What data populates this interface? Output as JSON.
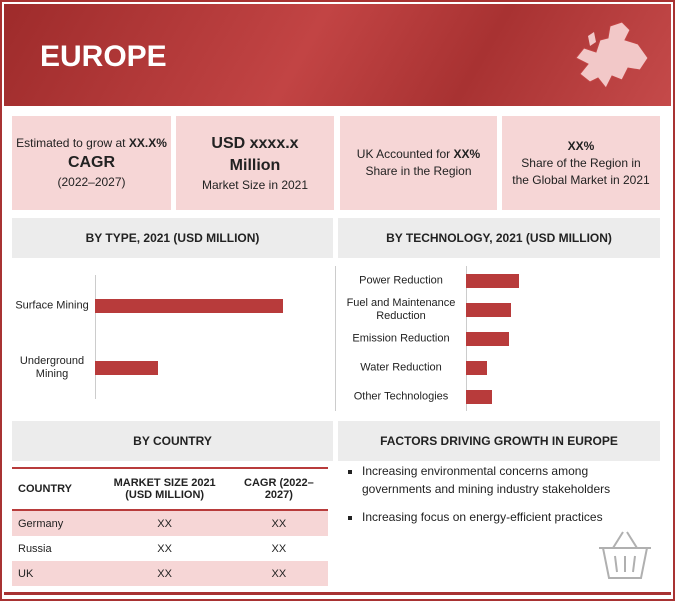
{
  "header": {
    "title": "EUROPE"
  },
  "stats": [
    {
      "pre": "Estimated to grow at",
      "highlight": "XX.X%",
      "main": "CAGR",
      "note": "(2022–2027)"
    },
    {
      "main": "USD xxxx.x",
      "main2": "Million",
      "note": "Market Size in 2021"
    },
    {
      "pre": "UK Accounted for",
      "highlight": "XX%",
      "note": "Share in the Region"
    },
    {
      "highlight": "XX%",
      "note": "Share of the Region in",
      "note2": "the Global Market in 2021"
    }
  ],
  "chart_data": [
    {
      "type": "bar",
      "title": "BY TYPE, 2021 (USD MILLION)",
      "orientation": "horizontal",
      "categories": [
        "Surface Mining",
        "Underground Mining"
      ],
      "values": [
        80,
        27
      ],
      "xlim": [
        0,
        100
      ],
      "color": "#b83b3b"
    },
    {
      "type": "bar",
      "title": "BY TECHNOLOGY, 2021 (USD MILLION)",
      "orientation": "horizontal",
      "categories": [
        "Power Reduction",
        "Fuel and Maintenance Reduction",
        "Emission Reduction",
        "Water Reduction",
        "Other Technologies"
      ],
      "values": [
        28,
        24,
        23,
        11,
        14
      ],
      "xlim": [
        0,
        100
      ],
      "color": "#b83b3b"
    }
  ],
  "country": {
    "title": "BY COUNTRY",
    "columns": [
      "COUNTRY",
      "MARKET SIZE 2021 (USD MILLION)",
      "CAGR (2022–2027)"
    ],
    "rows": [
      [
        "Germany",
        "XX",
        "XX"
      ],
      [
        "Russia",
        "XX",
        "XX"
      ],
      [
        "UK",
        "XX",
        "XX"
      ]
    ]
  },
  "factors": {
    "title": "FACTORS DRIVING GROWTH IN EUROPE",
    "items": [
      "Increasing environmental concerns among governments and mining industry stakeholders",
      "Increasing focus on energy-efficient practices"
    ]
  }
}
